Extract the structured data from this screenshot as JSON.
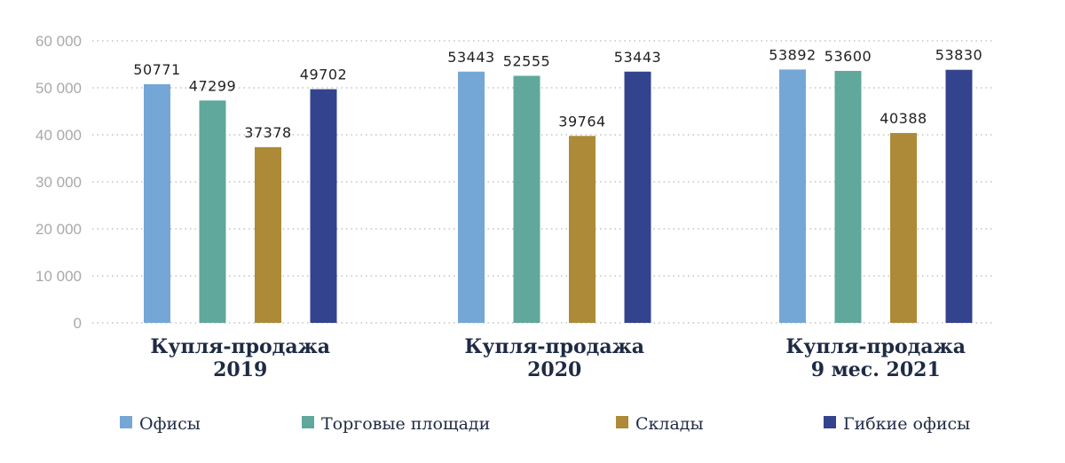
{
  "chart_data": {
    "type": "bar",
    "categories": [
      [
        "Купля-продажа",
        "2019"
      ],
      [
        "Купля-продажа",
        "2020"
      ],
      [
        "Купля-продажа",
        "9 мес. 2021"
      ]
    ],
    "series": [
      {
        "name": "Офисы",
        "color": "#74a7d6",
        "values": [
          50771,
          53443,
          53892
        ]
      },
      {
        "name": "Торговые площади",
        "color": "#5fa89b",
        "values": [
          47299,
          52555,
          53600
        ]
      },
      {
        "name": "Склады",
        "color": "#ad8a37",
        "values": [
          37378,
          39764,
          40388
        ]
      },
      {
        "name": "Гибкие офисы",
        "color": "#33438d",
        "values": [
          49702,
          53443,
          53830
        ]
      }
    ],
    "y_ticks": [
      "0",
      "10 000",
      "20 000",
      "30 000",
      "40 000",
      "50 000",
      "60 000"
    ],
    "ylim": [
      0,
      60000
    ],
    "grid": "horizontal-dotted",
    "legend_position": "bottom",
    "title": "",
    "xlabel": "",
    "ylabel": ""
  }
}
